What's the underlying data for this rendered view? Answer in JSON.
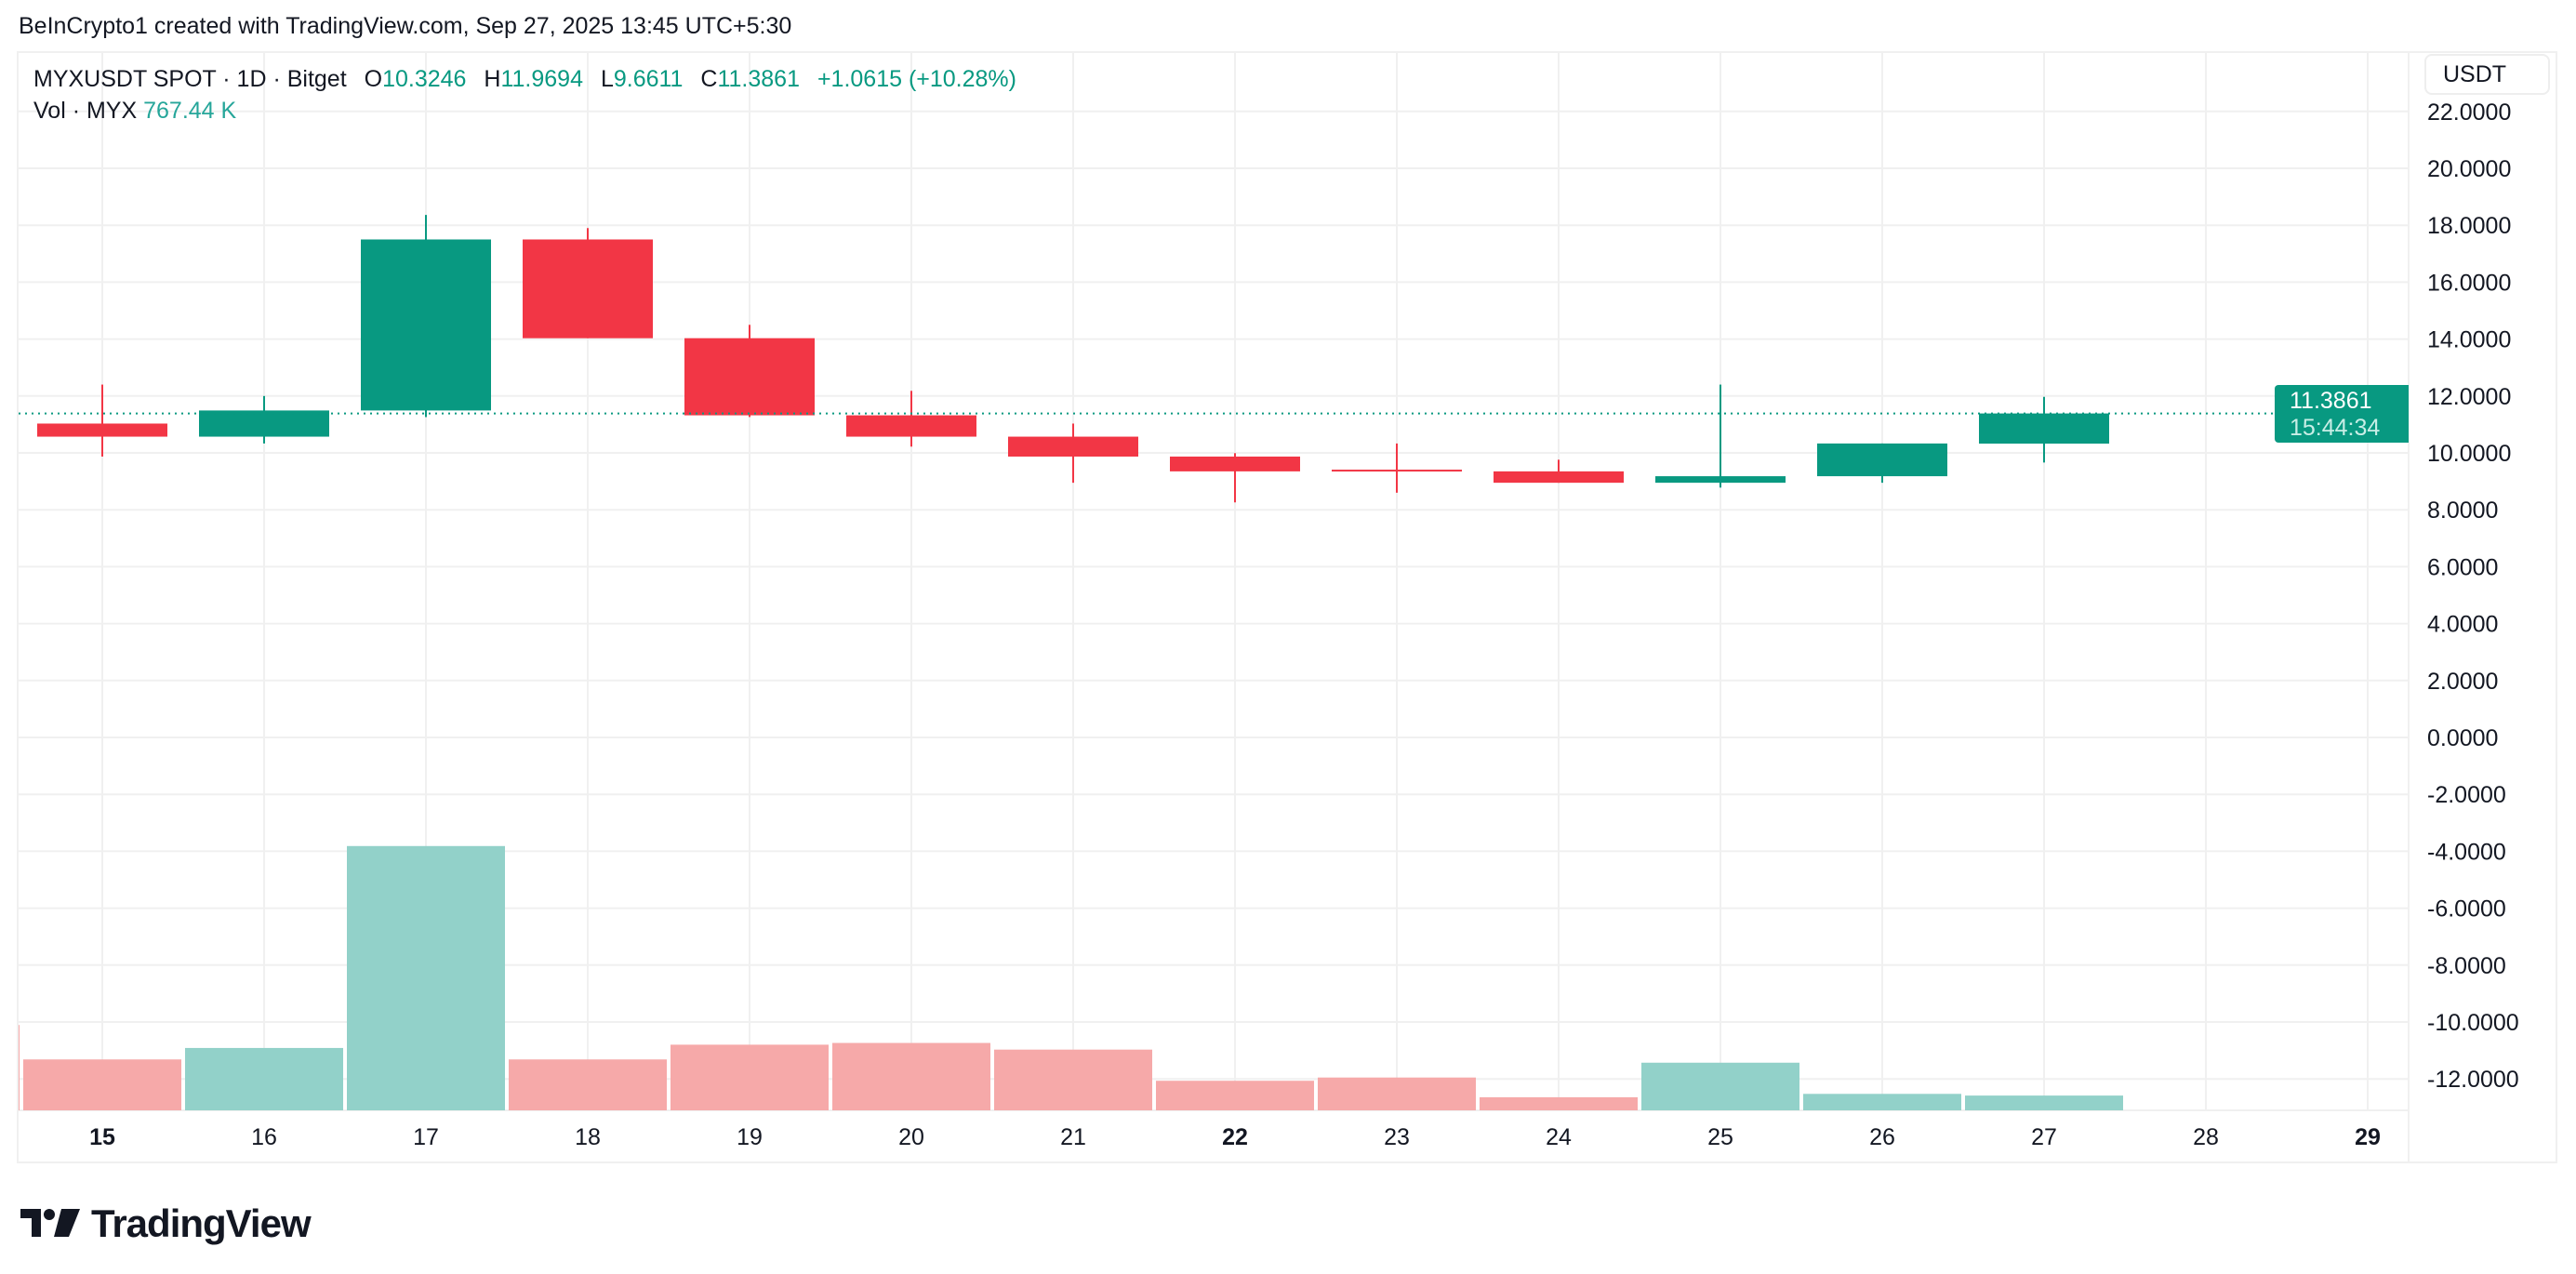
{
  "attribution": "BeInCrypto1 created with TradingView.com, Sep 27, 2025 13:45 UTC+5:30",
  "legend": {
    "symbol": "MYXUSDT SPOT · 1D · Bitget",
    "open_label": "O",
    "open": "10.3246",
    "high_label": "H",
    "high": "11.9694",
    "low_label": "L",
    "low": "9.6611",
    "close_label": "C",
    "close": "11.3861",
    "change": "+1.0615 (+10.28%)",
    "vol_label": "Vol · MYX",
    "vol_value": "767.44 K"
  },
  "currency_button": "USDT",
  "last_price": {
    "price": "11.3861",
    "countdown": "15:44:34"
  },
  "logo": {
    "text": "TradingView"
  },
  "colors": {
    "up": "#089981",
    "down": "#f23645",
    "vol_up": "#92d1c9",
    "vol_down": "#f6a9a9",
    "grid": "#f0f0f0"
  },
  "chart_data": {
    "type": "candlestick",
    "ylim": [
      -13.2,
      22.8
    ],
    "y_ticks": [
      "22.0000",
      "20.0000",
      "18.0000",
      "16.0000",
      "14.0000",
      "12.0000",
      "10.0000",
      "8.0000",
      "6.0000",
      "4.0000",
      "2.0000",
      "0.0000",
      "-2.0000",
      "-4.0000",
      "-6.0000",
      "-8.0000",
      "-10.0000",
      "-12.0000"
    ],
    "x_ticks": [
      "15",
      "16",
      "17",
      "18",
      "19",
      "20",
      "21",
      "22",
      "23",
      "24",
      "25",
      "26",
      "27",
      "28",
      "29"
    ],
    "bold_x_ticks": [
      "15",
      "22",
      "29"
    ],
    "candles": [
      {
        "day": "15",
        "open": 11.03,
        "high": 12.4,
        "low": 9.87,
        "close": 10.57
      },
      {
        "day": "16",
        "open": 10.57,
        "high": 12.0,
        "low": 10.33,
        "close": 11.49
      },
      {
        "day": "17",
        "open": 11.49,
        "high": 18.36,
        "low": 11.26,
        "close": 17.5
      },
      {
        "day": "18",
        "open": 17.5,
        "high": 17.9,
        "low": 14.03,
        "close": 14.03
      },
      {
        "day": "19",
        "open": 14.03,
        "high": 14.5,
        "low": 11.26,
        "close": 11.32
      },
      {
        "day": "20",
        "open": 11.32,
        "high": 12.18,
        "low": 10.22,
        "close": 10.57
      },
      {
        "day": "21",
        "open": 10.57,
        "high": 11.03,
        "low": 8.95,
        "close": 9.87
      },
      {
        "day": "22",
        "open": 9.87,
        "high": 9.99,
        "low": 8.26,
        "close": 9.35
      },
      {
        "day": "23",
        "open": 9.41,
        "high": 10.33,
        "low": 8.6,
        "close": 9.36
      },
      {
        "day": "24",
        "open": 9.35,
        "high": 9.76,
        "low": 8.95,
        "close": 8.95
      },
      {
        "day": "25",
        "open": 8.95,
        "high": 12.4,
        "low": 8.78,
        "close": 9.18
      },
      {
        "day": "26",
        "open": 9.18,
        "high": 10.33,
        "low": 8.95,
        "close": 10.33
      },
      {
        "day": "27",
        "open": 10.3246,
        "high": 11.9694,
        "low": 9.6611,
        "close": 11.3861
      }
    ],
    "volume_k": [
      {
        "day": "14",
        "value": 4435,
        "dir": "down"
      },
      {
        "day": "15",
        "value": 2645,
        "dir": "down"
      },
      {
        "day": "16",
        "value": 3240,
        "dir": "up"
      },
      {
        "day": "17",
        "value": 13730,
        "dir": "up"
      },
      {
        "day": "18",
        "value": 2645,
        "dir": "down"
      },
      {
        "day": "19",
        "value": 3410,
        "dir": "down"
      },
      {
        "day": "20",
        "value": 3500,
        "dir": "down"
      },
      {
        "day": "21",
        "value": 3155,
        "dir": "down"
      },
      {
        "day": "22",
        "value": 1535,
        "dir": "down"
      },
      {
        "day": "23",
        "value": 1705,
        "dir": "down"
      },
      {
        "day": "24",
        "value": 680,
        "dir": "down"
      },
      {
        "day": "25",
        "value": 2475,
        "dir": "up"
      },
      {
        "day": "26",
        "value": 855,
        "dir": "up"
      },
      {
        "day": "27",
        "value": 767.44,
        "dir": "up"
      }
    ],
    "last_price_line": 11.3861,
    "grid": true
  }
}
